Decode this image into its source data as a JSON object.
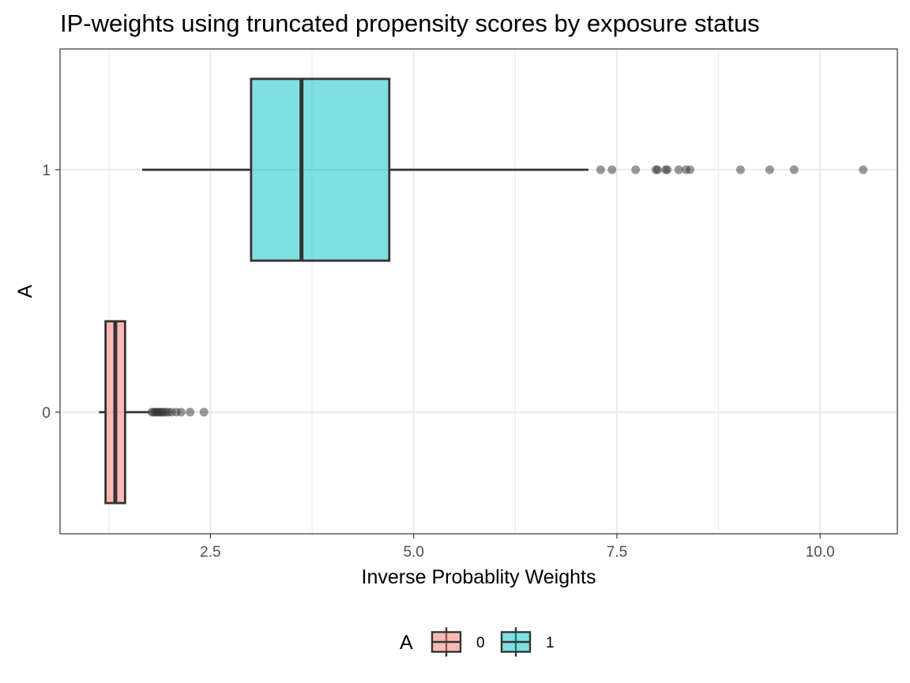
{
  "chart_data": {
    "type": "boxplot",
    "title": "IP-weights using truncated propensity scores by exposure status",
    "xlabel": "Inverse Probablity Weights",
    "ylabel": "A",
    "xlim": [
      0.65,
      10.95
    ],
    "x_ticks": [
      2.5,
      5.0,
      7.5,
      10.0
    ],
    "x_tick_labels": [
      "2.5",
      "5.0",
      "7.5",
      "10.0"
    ],
    "y_categories": [
      "0",
      "1"
    ],
    "grid": true,
    "legend": {
      "title": "A",
      "position": "bottom",
      "entries": [
        "0",
        "1"
      ]
    },
    "series": [
      {
        "name": "0",
        "category": "0",
        "color": "#F8766D",
        "whisker_low": 1.13,
        "q1": 1.21,
        "median": 1.33,
        "q3": 1.45,
        "whisker_high": 1.75,
        "outliers": [
          1.78,
          1.8,
          1.82,
          1.84,
          1.86,
          1.88,
          1.9,
          1.92,
          1.95,
          1.98,
          2.02,
          2.08,
          2.14,
          2.25,
          2.42
        ]
      },
      {
        "name": "1",
        "category": "1",
        "color": "#00BFC4",
        "whisker_low": 1.66,
        "q1": 3.0,
        "median": 3.62,
        "q3": 4.7,
        "whisker_high": 7.15,
        "outliers": [
          7.3,
          7.44,
          7.73,
          7.98,
          8.0,
          8.1,
          8.12,
          8.26,
          8.35,
          8.4,
          9.02,
          9.38,
          9.68,
          10.53
        ]
      }
    ]
  }
}
